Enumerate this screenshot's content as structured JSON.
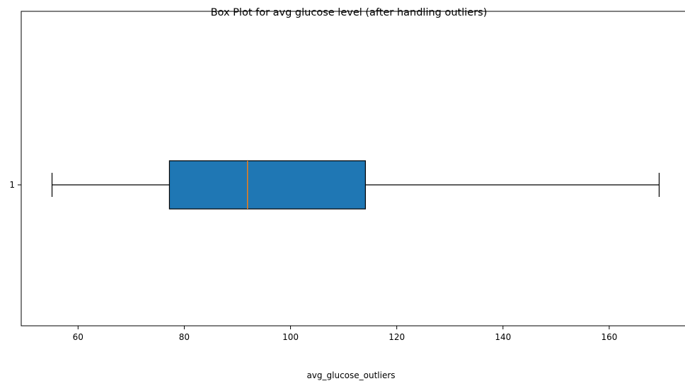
{
  "chart_data": {
    "type": "box",
    "orientation": "horizontal",
    "title": "Box Plot for avg glucose level (after handling outliers)",
    "xlabel": "avg_glucose_outliers",
    "ylabel": "",
    "categories": [
      "1"
    ],
    "xlim": [
      49.3,
      175.2
    ],
    "xticks": [
      60,
      80,
      100,
      120,
      140,
      160
    ],
    "box": {
      "whisker_low": 55.1,
      "q1": 77.2,
      "median": 91.9,
      "q3": 114.1,
      "whisker_high": 169.4
    },
    "colors": {
      "box_fill": "#1f77b4",
      "median": "#ff7f0e",
      "lines": "#000000"
    },
    "grid": false,
    "legend": "none"
  }
}
